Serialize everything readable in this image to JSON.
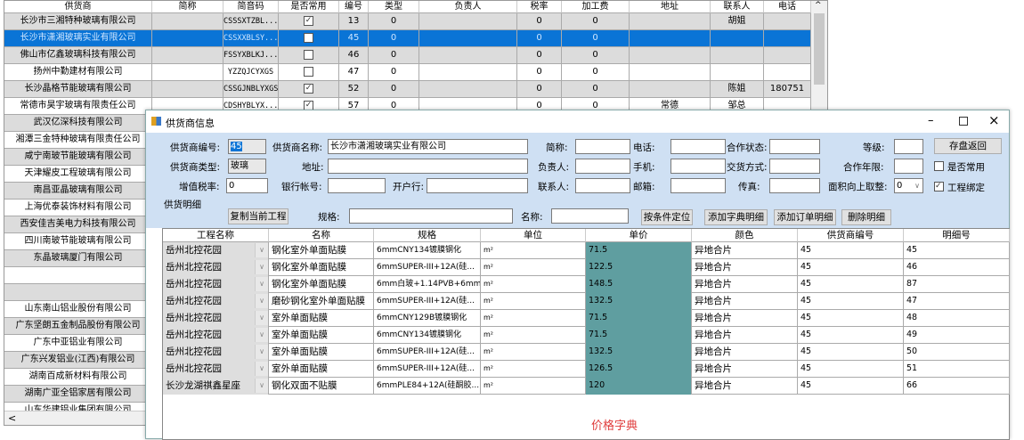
{
  "supplier_grid": {
    "columns": [
      "供货商",
      "简称",
      "简音码",
      "是否常用",
      "编号",
      "类型",
      "负责人",
      "税率",
      "加工费",
      "地址",
      "联系人",
      "电话"
    ],
    "rows": [
      {
        "name": "长沙市三湘特种玻璃有限公司",
        "abbr": "",
        "code": "CSSSXTZBL...",
        "common": true,
        "no": "13",
        "type": "0",
        "owner": "",
        "tax": "0",
        "fee": "0",
        "addr": "",
        "contact": "胡姐",
        "phone": ""
      },
      {
        "name": "长沙市潇湘玻璃实业有限公司",
        "abbr": "",
        "code": "CSSXXBLSY...",
        "common": false,
        "no": "45",
        "type": "0",
        "owner": "",
        "tax": "0",
        "fee": "0",
        "addr": "",
        "contact": "",
        "phone": "",
        "selected": true
      },
      {
        "name": "佛山市亿鑫玻璃科技有限公司",
        "abbr": "",
        "code": "FSSYXBLKJ...",
        "common": false,
        "no": "46",
        "type": "0",
        "owner": "",
        "tax": "0",
        "fee": "0",
        "addr": "",
        "contact": "",
        "phone": ""
      },
      {
        "name": "扬州中勤建材有限公司",
        "abbr": "",
        "code": "YZZQJCYXGS",
        "common": false,
        "no": "47",
        "type": "0",
        "owner": "",
        "tax": "0",
        "fee": "0",
        "addr": "",
        "contact": "",
        "phone": ""
      },
      {
        "name": "长沙晶格节能玻璃有限公司",
        "abbr": "",
        "code": "CSSGJNBLYXGS",
        "common": true,
        "no": "52",
        "type": "0",
        "owner": "",
        "tax": "0",
        "fee": "0",
        "addr": "",
        "contact": "陈姐",
        "phone": "180751"
      },
      {
        "name": "常德市昊宇玻璃有限责任公司",
        "abbr": "",
        "code": "CDSHYBLYX...",
        "common": true,
        "no": "57",
        "type": "0",
        "owner": "",
        "tax": "0",
        "fee": "0",
        "addr": "常德",
        "contact": "邹总",
        "phone": ""
      },
      {
        "name": "武汉亿深科技有限公司"
      },
      {
        "name": "湘潭三金特种玻璃有限责任公司"
      },
      {
        "name": "咸宁南玻节能玻璃有限公司"
      },
      {
        "name": "天津耀皮工程玻璃有限公司"
      },
      {
        "name": "南昌亚晶玻璃有限公司"
      },
      {
        "name": "上海优泰装饰材料有限公司"
      },
      {
        "name": "西安佳吉美电力科技有限公司"
      },
      {
        "name": "四川南玻节能玻璃有限公司"
      },
      {
        "name": "东晶玻璃厦门有限公司"
      },
      {
        "name": ""
      },
      {
        "name": ""
      },
      {
        "name": "山东南山铝业股份有限公司"
      },
      {
        "name": "广东坚朗五金制品股份有限公司"
      },
      {
        "name": "广东中亚铝业有限公司"
      },
      {
        "name": "广东兴发铝业(江西)有限公司"
      },
      {
        "name": "湖南百成新材料有限公司"
      },
      {
        "name": "湖南广亚全铝家居有限公司"
      },
      {
        "name": "山东华建铝业集团有限公司"
      }
    ]
  },
  "dialog": {
    "title": "供货商信息",
    "form": {
      "supplier_no_label": "供货商编号:",
      "supplier_no": "45",
      "supplier_name_label": "供货商名称:",
      "supplier_name": "长沙市潇湘玻璃实业有限公司",
      "abbr_label": "简称:",
      "phone_label": "电话:",
      "coop_status_label": "合作状态:",
      "level_label": "等级:",
      "save_return": "存盘返回",
      "supplier_type_label": "供货商类型:",
      "supplier_type": "玻璃",
      "address_label": "地址:",
      "owner_label": "负责人:",
      "mobile_label": "手机:",
      "delivery_label": "交货方式:",
      "coop_years_label": "合作年限:",
      "common_label": "是否常用",
      "common_checked": false,
      "vat_label": "增值税率:",
      "vat": "0",
      "bank_account_label": "银行帐号:",
      "bank_label": "开户行:",
      "contact_label": "联系人:",
      "email_label": "邮箱:",
      "fax_label": "传真:",
      "round_label": "面积向上取整:",
      "round_value": "0",
      "bind_label": "工程绑定",
      "bind_checked": true,
      "detail_section": "供货明细",
      "copy_project": "复制当前工程",
      "spec_label": "规格:",
      "name_label": "名称:",
      "locate": "按条件定位",
      "add_dict": "添加字典明细",
      "add_order": "添加订单明细",
      "delete_detail": "删除明细"
    },
    "detail_grid": {
      "columns": [
        "工程名称",
        "名称",
        "规格",
        "单位",
        "单价",
        "颜色",
        "供货商编号",
        "明细号"
      ],
      "rows": [
        [
          "岳州北控花园",
          "钢化室外单面贴膜",
          "6mmCNY134镀膜钢化",
          "m²",
          "71.5",
          "异地合片",
          "45",
          "45"
        ],
        [
          "岳州北控花园",
          "钢化室外单面贴膜",
          "6mmSUPER-III+12A(硅...",
          "m²",
          "122.5",
          "异地合片",
          "45",
          "46"
        ],
        [
          "岳州北控花园",
          "钢化室外单面贴膜",
          "6mm白玻+1.14PVB+6mm...",
          "m²",
          "148.5",
          "异地合片",
          "45",
          "87"
        ],
        [
          "岳州北控花园",
          "磨砂钢化室外单面贴膜",
          "6mmSUPER-III+12A(硅...",
          "m²",
          "132.5",
          "异地合片",
          "45",
          "47"
        ],
        [
          "岳州北控花园",
          "室外单面贴膜",
          "6mmCNY129B镀膜钢化",
          "m²",
          "71.5",
          "异地合片",
          "45",
          "48"
        ],
        [
          "岳州北控花园",
          "室外单面贴膜",
          "6mmCNY134镀膜钢化",
          "m²",
          "71.5",
          "异地合片",
          "45",
          "49"
        ],
        [
          "岳州北控花园",
          "室外单面贴膜",
          "6mmSUPER-III+12A(硅...",
          "m²",
          "132.5",
          "异地合片",
          "45",
          "50"
        ],
        [
          "岳州北控花园",
          "室外单面贴膜",
          "6mmSUPER-III+12A(硅...",
          "m²",
          "126.5",
          "异地合片",
          "45",
          "51"
        ],
        [
          "长沙龙湖祺鑫星座",
          "钢化双面不贴膜",
          "6mmPLE84+12A(硅酮胶...",
          "m²",
          "120",
          "异地合片",
          "45",
          "66"
        ]
      ]
    },
    "footer_text": "价格字典"
  },
  "colors": {
    "selection": "#0a74d6",
    "form_bg": "#cfe0f3",
    "price_cell": "#5f9ea0",
    "footer_text": "#e03c3c"
  }
}
